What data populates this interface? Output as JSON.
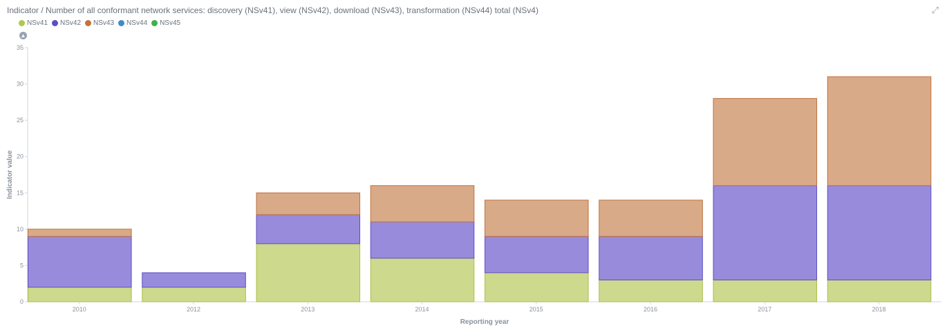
{
  "header": {
    "title": "Indicator / Number of all conformant network services: discovery (NSv41), view (NSv42), download (NSv43), transformation (NSv44) total (NSv4)",
    "expand_icon": "expand-icon",
    "collapse_icon": "chevron-up-icon"
  },
  "legend": [
    {
      "label": "NSv41",
      "color": "#b0c94a"
    },
    {
      "label": "NSv42",
      "color": "#5a4fc4"
    },
    {
      "label": "NSv43",
      "color": "#c8703e"
    },
    {
      "label": "NSv44",
      "color": "#3b8fc4"
    },
    {
      "label": "NSv45",
      "color": "#3fb04a"
    }
  ],
  "chart_data": {
    "type": "bar",
    "stacked": true,
    "categories": [
      "2010",
      "2012",
      "2013",
      "2014",
      "2015",
      "2016",
      "2017",
      "2018"
    ],
    "series": [
      {
        "name": "NSv41",
        "values": [
          2,
          2,
          8,
          6,
          4,
          3,
          3,
          3
        ],
        "fill": "#cdd98c",
        "stroke": "#a9c04a"
      },
      {
        "name": "NSv42",
        "values": [
          7,
          2,
          4,
          5,
          5,
          6,
          13,
          13
        ],
        "fill": "#988bdb",
        "stroke": "#5a4fc4"
      },
      {
        "name": "NSv43",
        "values": [
          1,
          0,
          3,
          5,
          5,
          5,
          12,
          15
        ],
        "fill": "#d8aa88",
        "stroke": "#c0703e"
      },
      {
        "name": "NSv44",
        "values": [
          0,
          0,
          0,
          0,
          0,
          0,
          0,
          0
        ],
        "fill": "#3b8fc4",
        "stroke": "#3b8fc4"
      },
      {
        "name": "NSv45",
        "values": [
          0,
          0,
          0,
          0,
          0,
          0,
          0,
          0
        ],
        "fill": "#3fb04a",
        "stroke": "#3fb04a"
      }
    ],
    "xlabel": "Reporting year",
    "ylabel": "Indicator value",
    "ylim": [
      0,
      35
    ],
    "yticks": [
      0,
      5,
      10,
      15,
      20,
      25,
      30,
      35
    ],
    "grid": false,
    "legend_position": "top-left"
  }
}
